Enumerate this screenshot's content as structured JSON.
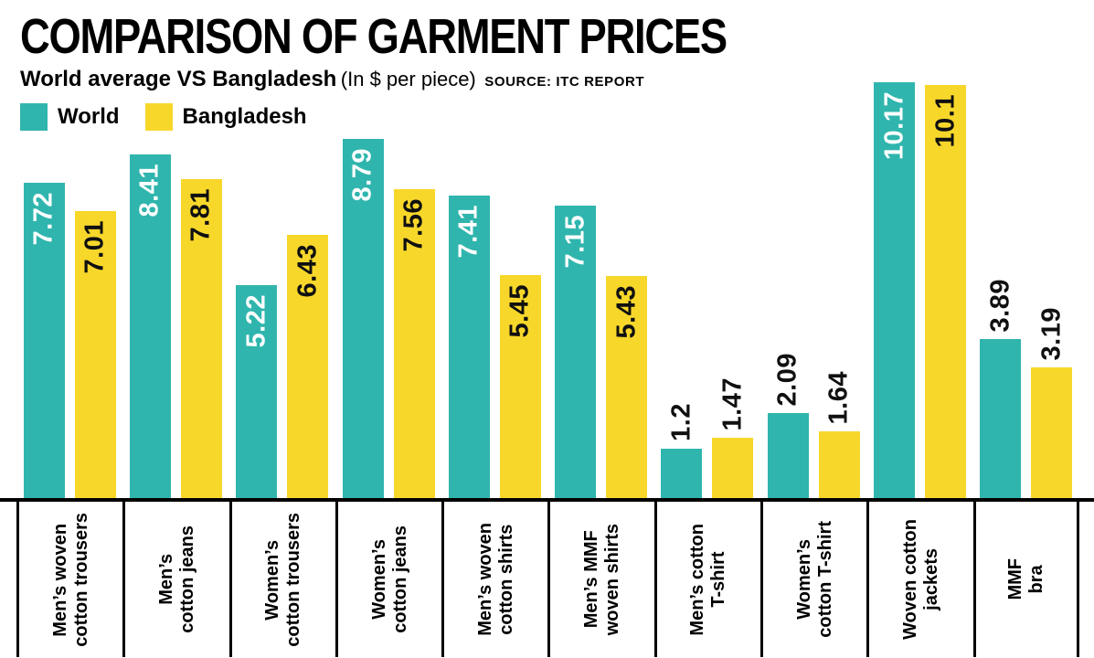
{
  "header": {
    "title": "COMPARISON OF GARMENT PRICES",
    "subtitle_bold": "World average VS Bangladesh",
    "subtitle_note": "(In $ per piece)",
    "source": "SOURCE: ITC REPORT"
  },
  "chart_data": {
    "type": "bar",
    "title": "COMPARISON OF GARMENT PRICES",
    "subtitle": "World average VS Bangladesh (In $ per piece)",
    "source": "ITC REPORT",
    "unit": "USD per piece",
    "categories": [
      "Men’s woven\ncotton trousers",
      "Men’s\ncotton jeans",
      "Women’s\ncotton trousers",
      "Women’s\ncotton jeans",
      "Men’s woven\ncotton shirts",
      "Men’s MMF\nwoven shirts",
      "Men’s cotton\nT-shirt",
      "Women’s\ncotton T-shirt",
      "Woven cotton\njackets",
      "MMF\nbra"
    ],
    "series": [
      {
        "name": "World",
        "color": "#2FB5AD",
        "values": [
          7.72,
          8.41,
          5.22,
          8.79,
          7.41,
          7.15,
          1.2,
          2.09,
          10.17,
          3.89
        ]
      },
      {
        "name": "Bangladesh",
        "color": "#F8D72B",
        "values": [
          7.01,
          7.81,
          6.43,
          7.56,
          5.45,
          5.43,
          1.47,
          1.64,
          10.1,
          3.19
        ]
      }
    ],
    "ylim": [
      0,
      10.24
    ],
    "grid": false,
    "legend_position": "top-left",
    "value_labels": true
  }
}
